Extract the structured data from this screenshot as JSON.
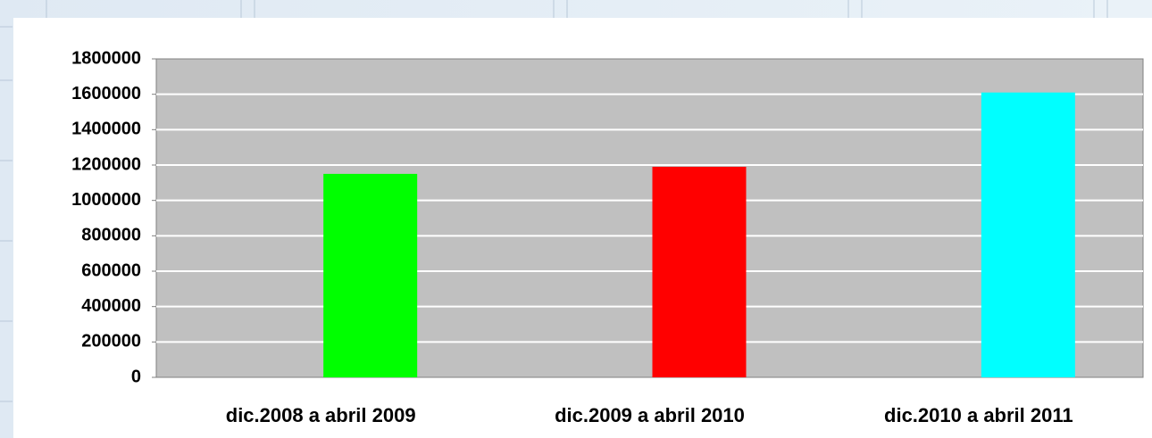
{
  "chart_data": {
    "type": "bar",
    "categories": [
      "dic.2008 a abril 2009",
      "dic.2009 a abril 2010",
      "dic.2010 a abril 2011"
    ],
    "values": [
      1150000,
      1190000,
      1610000
    ],
    "colors": [
      "#00ff00",
      "#ff0000",
      "#00ffff"
    ],
    "ylim": [
      0,
      1800000
    ],
    "yticks": [
      0,
      200000,
      400000,
      600000,
      800000,
      1000000,
      1200000,
      1400000,
      1600000,
      1800000
    ],
    "grid": true
  }
}
